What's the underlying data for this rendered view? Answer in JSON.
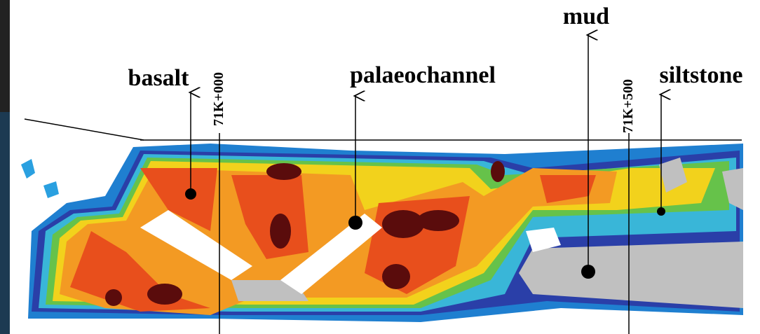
{
  "labels": [
    "basalt",
    "palaeochannel",
    "mud",
    "siltstone"
  ],
  "stations": [
    "71K+000",
    "71K+500"
  ]
}
